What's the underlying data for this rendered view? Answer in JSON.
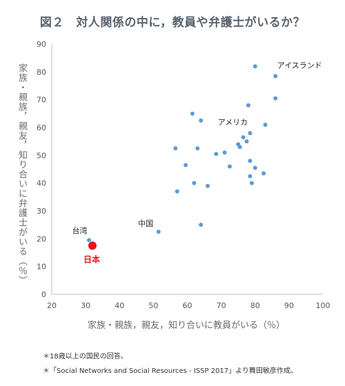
{
  "chart_data": {
    "type": "scatter",
    "title": "図２　対人関係の中に，教員や弁護士がいるか？",
    "xlabel": "家族・親族，親友，知り合いに教員がいる（％）",
    "ylabel": "家族・親族，親友，知り合いに弁護士がいる（％）",
    "xlim": [
      20,
      100
    ],
    "ylim": [
      0,
      90
    ],
    "xticks": [
      20,
      30,
      40,
      50,
      60,
      70,
      80,
      90,
      100
    ],
    "yticks": [
      0,
      10,
      20,
      30,
      40,
      50,
      60,
      70,
      80,
      90
    ],
    "grid": false,
    "point_color": "#5b9bd5",
    "highlight_color": "#e8131c",
    "points": [
      [
        31.0,
        19.5
      ],
      [
        51.5,
        22.5
      ],
      [
        56.5,
        52.5
      ],
      [
        57.0,
        37.0
      ],
      [
        59.5,
        46.5
      ],
      [
        61.5,
        65.0
      ],
      [
        62.0,
        40.0
      ],
      [
        63.0,
        52.5
      ],
      [
        64.0,
        62.5
      ],
      [
        64.0,
        25.0
      ],
      [
        66.0,
        39.0
      ],
      [
        68.5,
        50.5
      ],
      [
        71.0,
        51.0
      ],
      [
        72.5,
        46.0
      ],
      [
        75.0,
        54.0
      ],
      [
        75.5,
        53.0
      ],
      [
        76.5,
        56.5
      ],
      [
        77.5,
        55.0
      ],
      [
        78.0,
        68.0
      ],
      [
        78.5,
        58.0
      ],
      [
        78.5,
        48.0
      ],
      [
        78.5,
        42.5
      ],
      [
        79.0,
        40.0
      ],
      [
        80.0,
        45.5
      ],
      [
        80.0,
        82.0
      ],
      [
        82.5,
        43.5
      ],
      [
        83.0,
        61.0
      ],
      [
        86.0,
        70.5
      ],
      [
        86.0,
        78.5
      ]
    ],
    "highlight": {
      "label": "日本",
      "x": 32.0,
      "y": 17.5
    },
    "annotations": [
      {
        "text": "アイスランド",
        "x": 86.5,
        "y": 81.5
      },
      {
        "text": "アメリカ",
        "x": 69.0,
        "y": 61.0
      },
      {
        "text": "中国",
        "x": 45.5,
        "y": 24.5
      },
      {
        "text": "台湾",
        "x": 26.0,
        "y": 22.0
      }
    ]
  },
  "notes": [
    "＊18歳以上の国民の回答。",
    "＊「Social Networks and Social Resources - ISSP 2017」より舞田敏彦作成。"
  ]
}
